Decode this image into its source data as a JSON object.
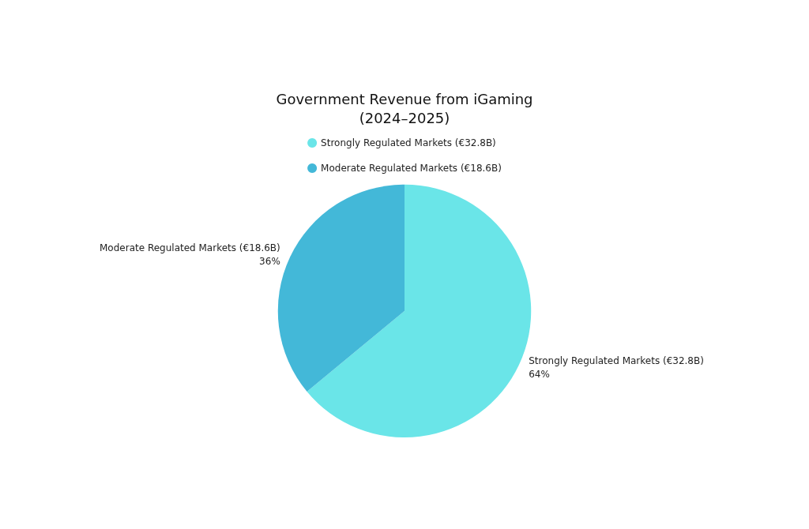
{
  "chart_data": {
    "type": "pie",
    "title": "Government Revenue from iGaming\n(2024–2025)",
    "categories": [
      "Strongly Regulated Markets (€32.8B)",
      "Moderate Regulated Markets (€18.6B)"
    ],
    "values": [
      64,
      36
    ],
    "colors": [
      "#6ae5e8",
      "#43b8d8"
    ],
    "legend": "top",
    "value_labels": [
      "64%",
      "36%"
    ]
  }
}
